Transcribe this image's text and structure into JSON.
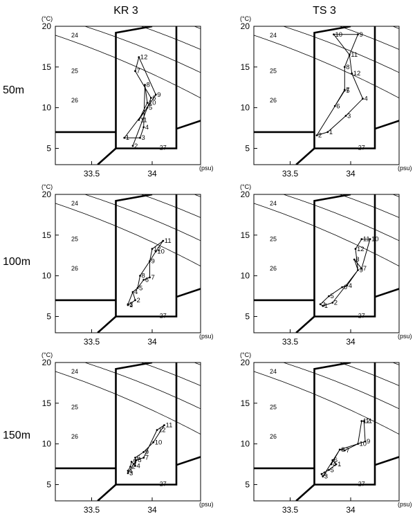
{
  "figure": {
    "columns": [
      "KR 3",
      "TS 3"
    ],
    "rows": [
      "50m",
      "100m",
      "150m"
    ],
    "t_unit": "(°C)",
    "s_unit": "(psu)"
  },
  "chart_data": [
    {
      "type": "scatter",
      "station": "KR 3",
      "depth": "50m",
      "xlim": [
        33.2,
        34.4
      ],
      "ylim": [
        3,
        20
      ],
      "x_ticks": [
        "33.5",
        "34"
      ],
      "y_ticks": [
        "5",
        "10",
        "15",
        "20"
      ],
      "density_labels": [
        "24",
        "25",
        "26",
        "27"
      ],
      "x": [
        33.77,
        33.84,
        33.9,
        33.93,
        33.96,
        33.99,
        33.86,
        33.94,
        34.03,
        33.96,
        33.89,
        33.89
      ],
      "y": [
        6.3,
        5.3,
        6.3,
        7.6,
        10.0,
        11.2,
        14.5,
        12.8,
        11.6,
        10.6,
        8.5,
        16.2
      ],
      "point_labels": [
        "1",
        "2",
        "3",
        "4",
        "5",
        "6",
        "7",
        "8",
        "9",
        "10",
        "11",
        "12"
      ],
      "order": [
        3,
        1,
        5,
        2,
        6,
        7,
        12,
        9,
        11,
        10,
        8,
        4,
        3
      ]
    },
    {
      "type": "scatter",
      "station": "TS 3",
      "depth": "50m",
      "xlim": [
        33.2,
        34.4
      ],
      "ylim": [
        3,
        20
      ],
      "x_ticks": [
        "33.5",
        "34"
      ],
      "y_ticks": [
        "5",
        "10",
        "15",
        "20"
      ],
      "density_labels": [
        "24",
        "25",
        "26",
        "27"
      ],
      "x": [
        33.81,
        33.72,
        33.96,
        34.1,
        33.95,
        33.87,
        33.95,
        33.95,
        34.06,
        33.86,
        33.99,
        34.01
      ],
      "y": [
        7.0,
        6.6,
        9.0,
        11.1,
        12.1,
        10.2,
        12.2,
        15.0,
        19.0,
        19.0,
        16.5,
        14.2
      ],
      "point_labels": [
        "1",
        "2",
        "3",
        "4",
        "5",
        "6",
        "7",
        "8",
        "9",
        "10",
        "11",
        "12"
      ],
      "order": [
        2,
        1,
        3,
        4,
        12,
        11,
        9,
        10,
        11,
        8,
        7,
        6,
        5,
        2
      ]
    },
    {
      "type": "scatter",
      "station": "KR 3",
      "depth": "100m",
      "xlim": [
        33.2,
        34.4
      ],
      "ylim": [
        3,
        20
      ],
      "x_ticks": [
        "33.5",
        "34"
      ],
      "y_ticks": [
        "5",
        "10",
        "15",
        "20"
      ],
      "density_labels": [
        "24",
        "25",
        "26",
        "27"
      ],
      "x": [
        33.8,
        33.86,
        33.8,
        33.84,
        33.88,
        33.93,
        33.98,
        33.9,
        33.98,
        34.03,
        34.09,
        34.0
      ],
      "y": [
        6.4,
        7.0,
        6.5,
        8.0,
        8.5,
        9.5,
        9.8,
        10.0,
        11.8,
        13.0,
        14.3,
        13.3
      ],
      "point_labels": [
        "1",
        "2",
        "3",
        "4",
        "5",
        "6",
        "7",
        "8",
        "9",
        "10",
        "11",
        "12"
      ],
      "order": [
        3,
        1,
        2,
        4,
        5,
        8,
        9,
        10,
        11,
        12,
        9,
        7,
        6,
        5,
        4,
        3
      ]
    },
    {
      "type": "scatter",
      "station": "TS 3",
      "depth": "100m",
      "xlim": [
        33.2,
        34.4
      ],
      "ylim": [
        3,
        20
      ],
      "x_ticks": [
        "33.5",
        "34"
      ],
      "y_ticks": [
        "5",
        "10",
        "15",
        "20"
      ],
      "density_labels": [
        "24",
        "25",
        "26",
        "27"
      ],
      "x": [
        33.77,
        33.85,
        33.75,
        33.97,
        33.82,
        33.93,
        34.09,
        34.03,
        34.06,
        34.16,
        34.09,
        34.04
      ],
      "y": [
        6.3,
        6.7,
        6.5,
        8.8,
        7.5,
        8.6,
        10.9,
        12.0,
        10.7,
        14.5,
        14.5,
        13.3
      ],
      "point_labels": [
        "1",
        "2",
        "3",
        "4",
        "5",
        "6",
        "7",
        "8",
        "9",
        "10",
        "11",
        "12"
      ],
      "order": [
        3,
        5,
        6,
        4,
        9,
        12,
        11,
        10,
        7,
        8,
        9,
        2,
        1,
        3
      ]
    },
    {
      "type": "scatter",
      "station": "KR 3",
      "depth": "150m",
      "xlim": [
        33.2,
        34.4
      ],
      "ylim": [
        3,
        20
      ],
      "x_ticks": [
        "33.5",
        "34"
      ],
      "y_ticks": [
        "5",
        "10",
        "15",
        "20"
      ],
      "density_labels": [
        "24",
        "25",
        "26",
        "27"
      ],
      "x": [
        33.8,
        33.82,
        33.8,
        33.86,
        33.83,
        33.86,
        33.93,
        33.87,
        33.93,
        34.01,
        34.1,
        34.04
      ],
      "y": [
        6.7,
        7.2,
        6.4,
        7.3,
        7.8,
        8.3,
        8.3,
        8.0,
        9.0,
        10.2,
        12.3,
        11.7
      ],
      "point_labels": [
        "1",
        "2",
        "3",
        "4",
        "5",
        "6",
        "7",
        "8",
        "9",
        "10",
        "11",
        "12"
      ],
      "order": [
        3,
        1,
        2,
        5,
        4,
        6,
        9,
        10,
        11,
        12,
        7,
        8,
        3
      ]
    },
    {
      "type": "scatter",
      "station": "TS 3",
      "depth": "150m",
      "xlim": [
        33.2,
        34.4
      ],
      "ylim": [
        3,
        20
      ],
      "x_ticks": [
        "33.5",
        "34"
      ],
      "y_ticks": [
        "5",
        "10",
        "15",
        "20"
      ],
      "density_labels": [
        "24",
        "25",
        "26",
        "27"
      ],
      "x": [
        33.88,
        33.76,
        33.77,
        33.84,
        33.82,
        33.85,
        33.95,
        33.91,
        34.12,
        34.06,
        34.11,
        34.09
      ],
      "y": [
        7.5,
        6.3,
        6.0,
        7.5,
        6.8,
        8.0,
        9.2,
        9.3,
        10.3,
        10.0,
        12.8,
        12.8
      ],
      "point_labels": [
        "1",
        "2",
        "3",
        "4",
        "5",
        "6",
        "7",
        "8",
        "9",
        "10",
        "11",
        "12"
      ],
      "order": [
        3,
        2,
        5,
        1,
        6,
        4,
        8,
        7,
        10,
        9,
        11,
        12,
        10,
        8,
        3
      ]
    }
  ]
}
